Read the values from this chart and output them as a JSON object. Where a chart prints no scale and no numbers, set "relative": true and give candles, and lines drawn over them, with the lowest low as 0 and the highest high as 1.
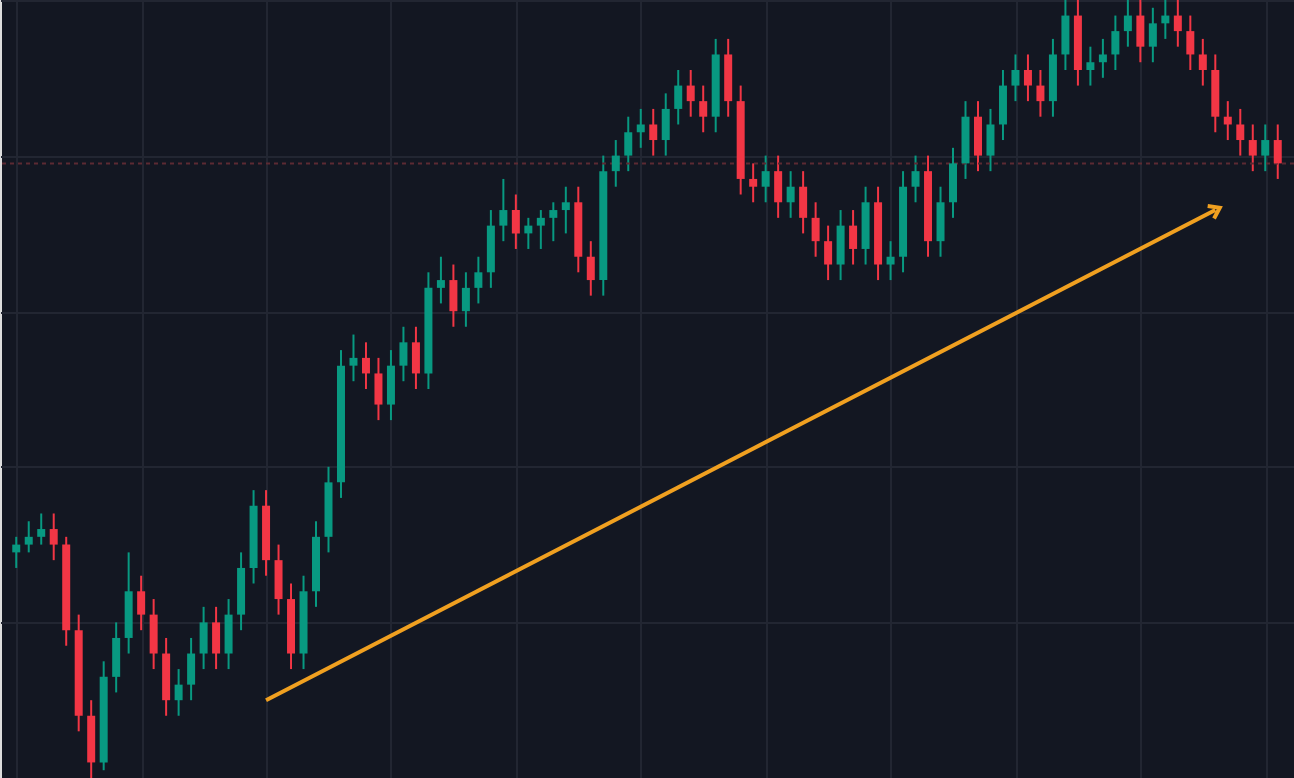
{
  "chart_data": {
    "type": "candlestick",
    "relative": true,
    "grid": true,
    "categories": [
      null,
      null,
      null,
      null,
      null,
      null,
      null,
      null,
      null,
      null,
      null,
      null,
      null,
      null,
      null,
      null,
      null,
      null,
      null,
      null,
      null,
      null,
      null,
      null,
      null,
      null,
      null,
      null,
      null,
      null,
      null,
      null,
      null,
      null,
      null,
      null,
      null,
      null,
      null,
      null,
      null,
      null,
      null,
      null,
      null,
      null,
      null,
      null,
      null,
      null,
      null,
      null,
      null,
      null,
      null,
      null,
      null,
      null,
      null,
      null,
      null,
      null,
      null,
      null,
      null,
      null,
      null,
      null,
      null,
      null,
      null,
      null,
      null,
      null,
      null,
      null,
      null,
      null,
      null,
      null,
      null,
      null,
      null,
      null,
      null,
      null,
      null,
      null,
      null,
      null,
      null,
      null,
      null,
      null,
      null,
      null,
      null,
      null,
      null,
      null,
      null,
      null
    ],
    "ohlc": [
      [
        0.29,
        0.31,
        0.27,
        0.3
      ],
      [
        0.3,
        0.33,
        0.29,
        0.31
      ],
      [
        0.31,
        0.34,
        0.3,
        0.32
      ],
      [
        0.32,
        0.34,
        0.28,
        0.3
      ],
      [
        0.3,
        0.31,
        0.17,
        0.19
      ],
      [
        0.19,
        0.21,
        0.06,
        0.08
      ],
      [
        0.08,
        0.1,
        0.0,
        0.02
      ],
      [
        0.02,
        0.15,
        0.01,
        0.13
      ],
      [
        0.13,
        0.2,
        0.11,
        0.18
      ],
      [
        0.18,
        0.29,
        0.16,
        0.24
      ],
      [
        0.24,
        0.26,
        0.19,
        0.21
      ],
      [
        0.21,
        0.23,
        0.14,
        0.16
      ],
      [
        0.16,
        0.18,
        0.08,
        0.1
      ],
      [
        0.1,
        0.14,
        0.08,
        0.12
      ],
      [
        0.12,
        0.18,
        0.1,
        0.16
      ],
      [
        0.16,
        0.22,
        0.14,
        0.2
      ],
      [
        0.2,
        0.22,
        0.14,
        0.16
      ],
      [
        0.16,
        0.23,
        0.14,
        0.21
      ],
      [
        0.21,
        0.29,
        0.19,
        0.27
      ],
      [
        0.27,
        0.37,
        0.25,
        0.35
      ],
      [
        0.35,
        0.37,
        0.26,
        0.28
      ],
      [
        0.28,
        0.3,
        0.21,
        0.23
      ],
      [
        0.23,
        0.25,
        0.14,
        0.16
      ],
      [
        0.16,
        0.26,
        0.14,
        0.24
      ],
      [
        0.24,
        0.33,
        0.22,
        0.31
      ],
      [
        0.31,
        0.4,
        0.29,
        0.38
      ],
      [
        0.38,
        0.55,
        0.36,
        0.53
      ],
      [
        0.53,
        0.57,
        0.51,
        0.54
      ],
      [
        0.54,
        0.56,
        0.5,
        0.52
      ],
      [
        0.52,
        0.54,
        0.46,
        0.48
      ],
      [
        0.48,
        0.55,
        0.46,
        0.53
      ],
      [
        0.53,
        0.58,
        0.51,
        0.56
      ],
      [
        0.56,
        0.58,
        0.5,
        0.52
      ],
      [
        0.52,
        0.65,
        0.5,
        0.63
      ],
      [
        0.63,
        0.67,
        0.61,
        0.64
      ],
      [
        0.64,
        0.66,
        0.58,
        0.6
      ],
      [
        0.6,
        0.65,
        0.58,
        0.63
      ],
      [
        0.63,
        0.67,
        0.61,
        0.65
      ],
      [
        0.65,
        0.73,
        0.63,
        0.71
      ],
      [
        0.71,
        0.77,
        0.69,
        0.73
      ],
      [
        0.73,
        0.75,
        0.68,
        0.7
      ],
      [
        0.7,
        0.72,
        0.68,
        0.71
      ],
      [
        0.71,
        0.73,
        0.68,
        0.72
      ],
      [
        0.72,
        0.74,
        0.69,
        0.73
      ],
      [
        0.73,
        0.76,
        0.7,
        0.74
      ],
      [
        0.74,
        0.76,
        0.65,
        0.67
      ],
      [
        0.67,
        0.69,
        0.62,
        0.64
      ],
      [
        0.64,
        0.8,
        0.62,
        0.78
      ],
      [
        0.78,
        0.82,
        0.76,
        0.8
      ],
      [
        0.8,
        0.85,
        0.78,
        0.83
      ],
      [
        0.83,
        0.86,
        0.81,
        0.84
      ],
      [
        0.84,
        0.86,
        0.8,
        0.82
      ],
      [
        0.82,
        0.88,
        0.8,
        0.86
      ],
      [
        0.86,
        0.91,
        0.84,
        0.89
      ],
      [
        0.89,
        0.91,
        0.85,
        0.87
      ],
      [
        0.87,
        0.89,
        0.83,
        0.85
      ],
      [
        0.85,
        0.95,
        0.83,
        0.93
      ],
      [
        0.93,
        0.95,
        0.85,
        0.87
      ],
      [
        0.87,
        0.89,
        0.75,
        0.77
      ],
      [
        0.77,
        0.79,
        0.74,
        0.76
      ],
      [
        0.76,
        0.8,
        0.74,
        0.78
      ],
      [
        0.78,
        0.8,
        0.72,
        0.74
      ],
      [
        0.74,
        0.78,
        0.72,
        0.76
      ],
      [
        0.76,
        0.78,
        0.7,
        0.72
      ],
      [
        0.72,
        0.74,
        0.67,
        0.69
      ],
      [
        0.69,
        0.71,
        0.64,
        0.66
      ],
      [
        0.66,
        0.73,
        0.64,
        0.71
      ],
      [
        0.71,
        0.73,
        0.66,
        0.68
      ],
      [
        0.68,
        0.76,
        0.66,
        0.74
      ],
      [
        0.74,
        0.76,
        0.64,
        0.66
      ],
      [
        0.66,
        0.69,
        0.64,
        0.67
      ],
      [
        0.67,
        0.78,
        0.65,
        0.76
      ],
      [
        0.76,
        0.8,
        0.74,
        0.78
      ],
      [
        0.78,
        0.8,
        0.67,
        0.69
      ],
      [
        0.69,
        0.76,
        0.67,
        0.74
      ],
      [
        0.74,
        0.81,
        0.72,
        0.79
      ],
      [
        0.79,
        0.87,
        0.77,
        0.85
      ],
      [
        0.85,
        0.87,
        0.78,
        0.8
      ],
      [
        0.8,
        0.86,
        0.78,
        0.84
      ],
      [
        0.84,
        0.91,
        0.82,
        0.89
      ],
      [
        0.89,
        0.93,
        0.87,
        0.91
      ],
      [
        0.91,
        0.93,
        0.87,
        0.89
      ],
      [
        0.89,
        0.91,
        0.85,
        0.87
      ],
      [
        0.87,
        0.95,
        0.85,
        0.93
      ],
      [
        0.93,
        1.0,
        0.91,
        0.98
      ],
      [
        0.98,
        1.0,
        0.89,
        0.91
      ],
      [
        0.91,
        0.94,
        0.89,
        0.92
      ],
      [
        0.92,
        0.95,
        0.9,
        0.93
      ],
      [
        0.93,
        0.98,
        0.91,
        0.96
      ],
      [
        0.96,
        1.0,
        0.94,
        0.98
      ],
      [
        0.98,
        1.0,
        0.92,
        0.94
      ],
      [
        0.94,
        0.99,
        0.92,
        0.97
      ],
      [
        0.97,
        1.0,
        0.95,
        0.98
      ],
      [
        0.98,
        1.0,
        0.94,
        0.96
      ],
      [
        0.96,
        0.98,
        0.91,
        0.93
      ],
      [
        0.93,
        0.95,
        0.89,
        0.91
      ],
      [
        0.91,
        0.93,
        0.83,
        0.85
      ],
      [
        0.85,
        0.87,
        0.82,
        0.84
      ],
      [
        0.84,
        0.86,
        0.8,
        0.82
      ],
      [
        0.82,
        0.84,
        0.78,
        0.8
      ],
      [
        0.8,
        0.84,
        0.78,
        0.82
      ],
      [
        0.82,
        0.84,
        0.77,
        0.79
      ]
    ],
    "series": [
      {
        "type": "line",
        "color": "#f0a020",
        "values": [
          null,
          null,
          null,
          null,
          null,
          null,
          null,
          null,
          null,
          null,
          null,
          null,
          null,
          null,
          null,
          null,
          null,
          null,
          null,
          null,
          0.1,
          null,
          null,
          null,
          null,
          null,
          null,
          null,
          null,
          null,
          null,
          null,
          null,
          null,
          null,
          null,
          null,
          null,
          null,
          null,
          null,
          null,
          null,
          null,
          null,
          null,
          null,
          null,
          null,
          null,
          null,
          null,
          null,
          null,
          null,
          null,
          null,
          null,
          null,
          null,
          null,
          null,
          null,
          null,
          null,
          null,
          null,
          null,
          null,
          null,
          null,
          null,
          null,
          null,
          null,
          null,
          null,
          null,
          null,
          null,
          null,
          null,
          null,
          null,
          null,
          null,
          null,
          null,
          null,
          null,
          null,
          null,
          null,
          null,
          null,
          null,
          0.73,
          null,
          null,
          null,
          null,
          null
        ]
      }
    ],
    "ref_lines": [
      {
        "axis": "y",
        "value": 0.79,
        "color": "#5c2a33",
        "line_style": "dotted"
      }
    ]
  }
}
